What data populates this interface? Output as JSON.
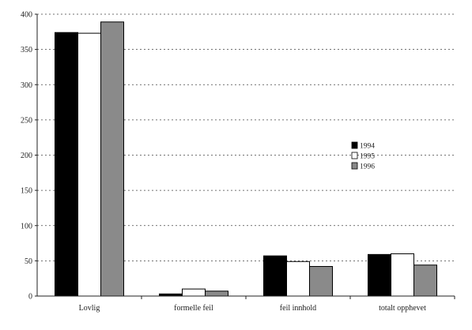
{
  "chart_data": {
    "type": "bar",
    "categories": [
      "Lovlig",
      "formelle feil",
      "feil innhold",
      "totalt opphevet"
    ],
    "series": [
      {
        "name": "1994",
        "values": [
          374,
          3,
          57,
          59
        ],
        "color": "#000000"
      },
      {
        "name": "1995",
        "values": [
          373,
          10,
          49,
          60
        ],
        "color": "#ffffff"
      },
      {
        "name": "1996",
        "values": [
          389,
          7,
          42,
          44
        ],
        "color": "#8a8a8a"
      }
    ],
    "ylim": [
      0,
      400
    ],
    "yticks": [
      "0",
      "50",
      "100",
      "150",
      "200",
      "250",
      "300",
      "350",
      "400"
    ],
    "grid": true,
    "legend_position": "right"
  }
}
